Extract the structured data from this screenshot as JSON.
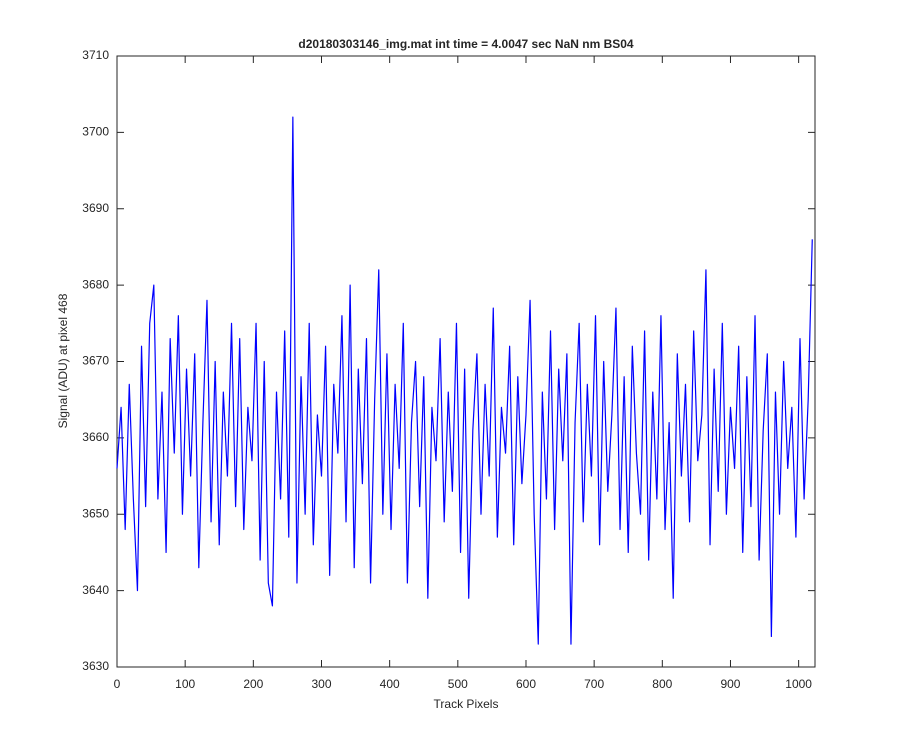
{
  "chart_data": {
    "type": "line",
    "title": "d20180303146_img.mat int time = 4.0047 sec  NaN nm BS04",
    "xlabel": "Track Pixels",
    "ylabel": "Signal (ADU) at pixel 468",
    "color": "#0000ff",
    "xlim": [
      0,
      1024
    ],
    "ylim": [
      3630,
      3710
    ],
    "xticks": [
      0,
      100,
      200,
      300,
      400,
      500,
      600,
      700,
      800,
      900,
      1000
    ],
    "yticks": [
      3630,
      3640,
      3650,
      3660,
      3670,
      3680,
      3690,
      3700,
      3710
    ],
    "grid": false,
    "x": [
      0,
      6,
      12,
      18,
      24,
      30,
      36,
      42,
      48,
      54,
      60,
      66,
      72,
      78,
      84,
      90,
      96,
      102,
      108,
      114,
      120,
      126,
      132,
      138,
      144,
      150,
      156,
      162,
      168,
      174,
      180,
      186,
      192,
      198,
      204,
      210,
      216,
      222,
      228,
      234,
      240,
      246,
      252,
      258,
      264,
      270,
      276,
      282,
      288,
      294,
      300,
      306,
      312,
      318,
      324,
      330,
      336,
      342,
      348,
      354,
      360,
      366,
      372,
      378,
      384,
      390,
      396,
      402,
      408,
      414,
      420,
      426,
      432,
      438,
      444,
      450,
      456,
      462,
      468,
      474,
      480,
      486,
      492,
      498,
      504,
      510,
      516,
      522,
      528,
      534,
      540,
      546,
      552,
      558,
      564,
      570,
      576,
      582,
      588,
      594,
      600,
      606,
      612,
      618,
      624,
      630,
      636,
      642,
      648,
      654,
      660,
      666,
      672,
      678,
      684,
      690,
      696,
      702,
      708,
      714,
      720,
      726,
      732,
      738,
      744,
      750,
      756,
      762,
      768,
      774,
      780,
      786,
      792,
      798,
      804,
      810,
      816,
      822,
      828,
      834,
      840,
      846,
      852,
      858,
      864,
      870,
      876,
      882,
      888,
      894,
      900,
      906,
      912,
      918,
      924,
      930,
      936,
      942,
      948,
      954,
      960,
      966,
      972,
      978,
      984,
      990,
      996,
      1002,
      1008,
      1014,
      1020
    ],
    "values": [
      3656,
      3664,
      3648,
      3667,
      3652,
      3640,
      3672,
      3651,
      3675,
      3680,
      3652,
      3666,
      3645,
      3673,
      3658,
      3676,
      3650,
      3669,
      3655,
      3671,
      3643,
      3662,
      3678,
      3649,
      3670,
      3646,
      3666,
      3655,
      3675,
      3651,
      3673,
      3648,
      3664,
      3657,
      3675,
      3644,
      3670,
      3641,
      3638,
      3666,
      3652,
      3674,
      3647,
      3702,
      3641,
      3668,
      3650,
      3675,
      3646,
      3663,
      3655,
      3672,
      3642,
      3667,
      3658,
      3676,
      3649,
      3680,
      3643,
      3669,
      3654,
      3673,
      3641,
      3665,
      3682,
      3650,
      3671,
      3648,
      3667,
      3656,
      3675,
      3641,
      3662,
      3670,
      3651,
      3668,
      3639,
      3664,
      3657,
      3673,
      3649,
      3666,
      3653,
      3675,
      3645,
      3669,
      3639,
      3661,
      3671,
      3650,
      3667,
      3655,
      3677,
      3647,
      3664,
      3658,
      3672,
      3646,
      3668,
      3654,
      3663,
      3678,
      3650,
      3633,
      3666,
      3652,
      3674,
      3648,
      3669,
      3657,
      3671,
      3633,
      3662,
      3675,
      3649,
      3667,
      3655,
      3676,
      3646,
      3670,
      3653,
      3663,
      3677,
      3648,
      3668,
      3645,
      3672,
      3658,
      3650,
      3674,
      3644,
      3666,
      3652,
      3676,
      3648,
      3662,
      3639,
      3671,
      3655,
      3667,
      3649,
      3674,
      3657,
      3663,
      3682,
      3646,
      3669,
      3653,
      3675,
      3650,
      3664,
      3656,
      3672,
      3645,
      3668,
      3651,
      3676,
      3644,
      3661,
      3671,
      3634,
      3666,
      3650,
      3670,
      3656,
      3664,
      3647,
      3673,
      3652,
      3665,
      3686
    ]
  }
}
